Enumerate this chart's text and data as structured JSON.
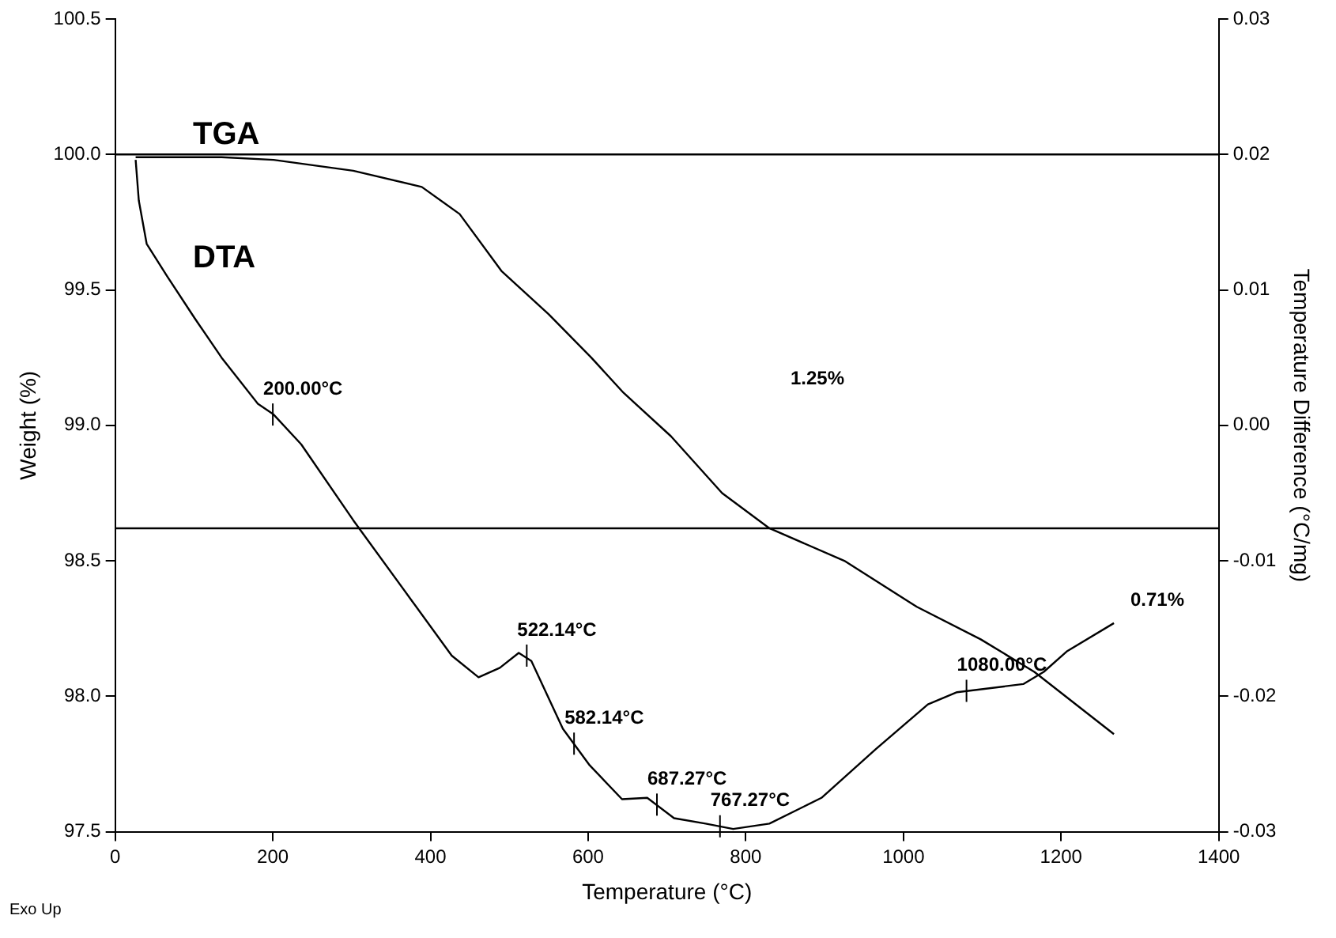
{
  "chart_data": {
    "type": "line",
    "xlabel": "Temperature (°C)",
    "ylabel": "Weight (%)",
    "y2label": "Temperature Difference (°C/mg)",
    "xlim": [
      0,
      1400
    ],
    "xticks": [
      0,
      200,
      400,
      600,
      800,
      1000,
      1200,
      1400
    ],
    "ylim": [
      97.5,
      100.5
    ],
    "yticks": [
      97.5,
      {
        "value": 98,
        "label": "98.0"
      },
      98.5,
      {
        "value": 99,
        "label": "99.0"
      },
      99.5,
      {
        "value": 100,
        "label": "100.0"
      },
      100.5
    ],
    "y2lim": [
      -0.03,
      0.03
    ],
    "y2ticks": [
      -0.03,
      -0.02,
      -0.01,
      {
        "value": 0,
        "label": "0.00"
      },
      0.01,
      0.02,
      0.03
    ],
    "grid": false,
    "legend": false,
    "marker": "none",
    "line_style": "solid",
    "series": [
      {
        "color": "#000000",
        "x": [
          26,
          135,
          201,
          302,
          389,
          437,
          490,
          550,
          604,
          645,
          705,
          770,
          830,
          925,
          1017,
          1098,
          1166,
          1267
        ],
        "values": [
          99.99,
          99.99,
          99.98,
          99.94,
          99.88,
          99.78,
          99.57,
          99.41,
          99.25,
          99.12,
          98.96,
          98.75,
          98.62,
          98.5,
          98.33,
          98.21,
          98.09,
          97.86
        ]
      },
      {
        "color": "#000000",
        "axis": "y2",
        "x": [
          26,
          30,
          40,
          66,
          101,
          135,
          181,
          201,
          236,
          302,
          377,
          427,
          461,
          488,
          512,
          528,
          568,
          602,
          643,
          675,
          709,
          749,
          784,
          830,
          896,
          965,
          1031,
          1068,
          1152,
          1178,
          1207,
          1267
        ],
        "values": [
          0.0196,
          0.0166,
          0.0134,
          0.011,
          0.0079,
          0.005,
          0.0016,
          0.0008,
          -0.0014,
          -0.007,
          -0.013,
          -0.017,
          -0.0186,
          -0.0179,
          -0.0168,
          -0.0174,
          -0.0224,
          -0.0251,
          -0.0276,
          -0.0275,
          -0.029,
          -0.0294,
          -0.0298,
          -0.0294,
          -0.0275,
          -0.0239,
          -0.0206,
          -0.0197,
          -0.0191,
          -0.0182,
          -0.0167,
          -0.0146
        ]
      }
    ],
    "ref_lines": [
      {
        "axis": "y",
        "value": 100.0,
        "color": "#000000"
      },
      {
        "axis": "y",
        "value": 98.62,
        "color": "#000000"
      }
    ],
    "annotations": [
      "TGA",
      "DTA",
      {
        "text": "200.00°C",
        "x": 200,
        "y": 99.04
      },
      {
        "text": "522.14°C",
        "x": 522.14,
        "y": 98.15
      },
      {
        "text": "582.14°C",
        "x": 582.14,
        "y": 97.825
      },
      {
        "text": "687.27°C",
        "x": 687.27,
        "y": 97.6
      },
      {
        "text": "767.27°C",
        "x": 767.27,
        "y": 97.52
      },
      {
        "text": "1080.00°C",
        "x": 1080,
        "y": 98.02
      },
      "1.25%",
      "0.71%",
      "Exo Up"
    ]
  }
}
